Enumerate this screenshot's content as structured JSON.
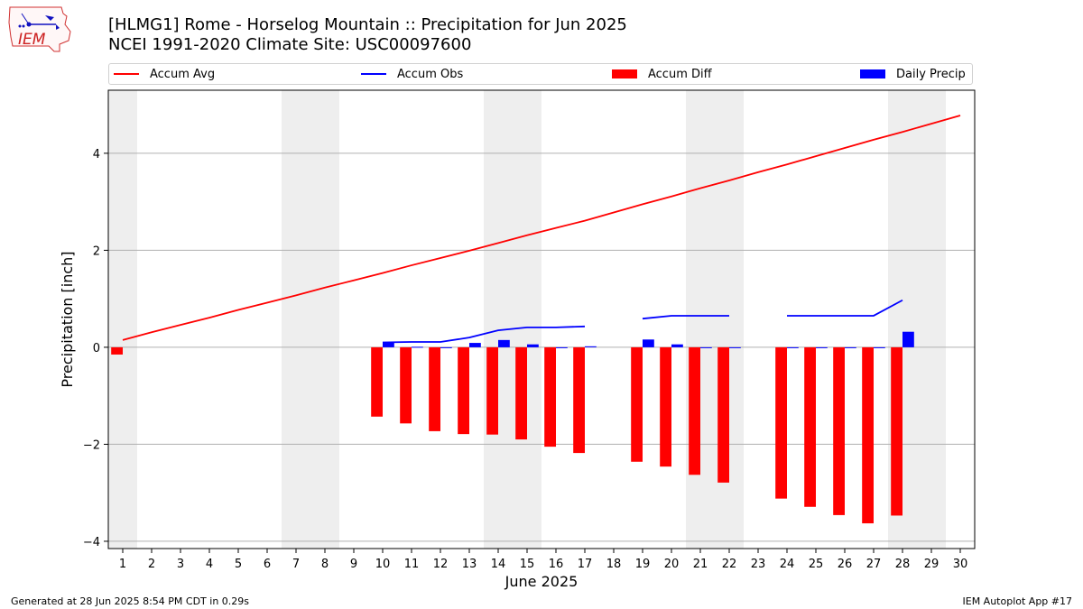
{
  "header": {
    "title_line1": "[HLMG1] Rome - Horselog Mountain :: Precipitation for Jun 2025",
    "title_line2": "NCEI 1991-2020 Climate Site: USC00097600"
  },
  "logo": {
    "text": "IEM"
  },
  "footer": {
    "left": "Generated at 28 Jun 2025 8:54 PM CDT in 0.29s",
    "right": "IEM Autoplot App #17"
  },
  "colors": {
    "avg": "#ff0000",
    "obs": "#0000ff",
    "diff": "#ff0000",
    "daily": "#0000ff",
    "weekend": "#eeeeee",
    "grid": "#b0b0b0"
  },
  "chart_data": {
    "type": "bar",
    "xlabel": "June 2025",
    "ylabel": "Precipitation [inch]",
    "xlim": [
      0.5,
      30.5
    ],
    "ylim": [
      -4.15,
      5.3
    ],
    "yticks": [
      -4,
      -2,
      0,
      2,
      4
    ],
    "ytick_labels": [
      "−4",
      "−2",
      "0",
      "2",
      "4"
    ],
    "x": [
      1,
      2,
      3,
      4,
      5,
      6,
      7,
      8,
      9,
      10,
      11,
      12,
      13,
      14,
      15,
      16,
      17,
      18,
      19,
      20,
      21,
      22,
      23,
      24,
      25,
      26,
      27,
      28,
      29,
      30
    ],
    "x_tick_labels": [
      "1",
      "2",
      "3",
      "4",
      "5",
      "6",
      "7",
      "8",
      "9",
      "10",
      "11",
      "12",
      "13",
      "14",
      "15",
      "16",
      "17",
      "18",
      "19",
      "20",
      "21",
      "22",
      "23",
      "24",
      "25",
      "26",
      "27",
      "28",
      "29",
      "30"
    ],
    "weekend_days": [
      1,
      7,
      8,
      14,
      15,
      21,
      22,
      28,
      29
    ],
    "grid": "y",
    "legend_position": "top",
    "series": [
      {
        "name": "Accum Avg",
        "kind": "line",
        "color": "#ff0000",
        "values": [
          0.15,
          0.31,
          0.46,
          0.61,
          0.77,
          0.92,
          1.07,
          1.23,
          1.38,
          1.53,
          1.69,
          1.84,
          1.99,
          2.15,
          2.31,
          2.46,
          2.61,
          2.78,
          2.95,
          3.11,
          3.28,
          3.44,
          3.61,
          3.77,
          3.94,
          4.11,
          4.28,
          4.44,
          4.61,
          4.78
        ]
      },
      {
        "name": "Accum Obs",
        "kind": "line",
        "color": "#0000ff",
        "values": [
          null,
          null,
          null,
          null,
          null,
          null,
          null,
          null,
          null,
          0.1,
          0.11,
          0.11,
          0.2,
          0.35,
          0.41,
          0.41,
          0.43,
          null,
          0.59,
          0.65,
          0.65,
          0.65,
          null,
          0.65,
          0.65,
          0.65,
          0.65,
          0.97,
          null,
          null
        ]
      },
      {
        "name": "Accum Diff",
        "kind": "bar",
        "color": "#ff0000",
        "values": [
          -0.15,
          null,
          null,
          null,
          null,
          null,
          null,
          null,
          null,
          -1.43,
          -1.57,
          -1.73,
          -1.79,
          -1.8,
          -1.9,
          -2.05,
          -2.18,
          null,
          -2.36,
          -2.46,
          -2.63,
          -2.79,
          null,
          -3.12,
          -3.29,
          -3.46,
          -3.63,
          -3.47,
          null,
          null
        ]
      },
      {
        "name": "Daily Precip",
        "kind": "bar",
        "color": "#0000ff",
        "values": [
          null,
          null,
          null,
          null,
          null,
          null,
          null,
          null,
          null,
          0.1,
          0.01,
          0.0,
          0.09,
          0.15,
          0.06,
          0.0,
          0.02,
          null,
          0.16,
          0.06,
          0.0,
          0.0,
          null,
          0.0,
          0.0,
          0.0,
          0.0,
          0.32,
          null,
          null
        ]
      }
    ]
  }
}
